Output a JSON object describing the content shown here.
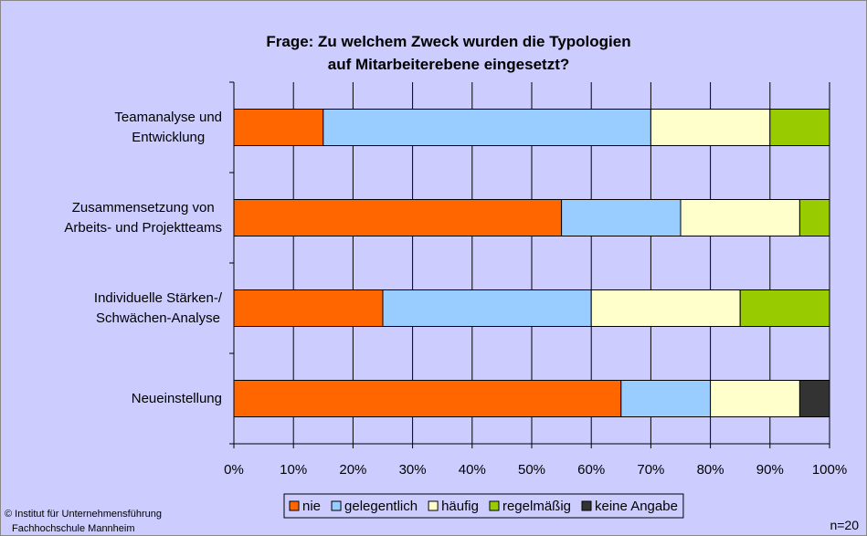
{
  "chart_data": {
    "type": "stacked_barh",
    "title": "Frage: Zu welchem Zweck wurden die Typologien\nauf Mitarbeiterebene eingesetzt?",
    "categories": [
      "Teamanalyse und\nEntwicklung",
      "Zusammensetzung von\nArbeits- und Projektteams",
      "Individuelle Stärken-/\nSchwächen-Analyse",
      "Neueinstellung"
    ],
    "series": [
      {
        "name": "nie",
        "color": "#ff6600",
        "values": [
          15,
          55,
          25,
          65
        ]
      },
      {
        "name": "gelegentlich",
        "color": "#99ccff",
        "values": [
          55,
          20,
          35,
          15
        ]
      },
      {
        "name": "häufig",
        "color": "#ffffcc",
        "values": [
          20,
          20,
          25,
          15
        ]
      },
      {
        "name": "regelmäßig",
        "color": "#99cc00",
        "values": [
          10,
          5,
          15,
          0
        ]
      },
      {
        "name": "keine Angabe",
        "color": "#333333",
        "values": [
          0,
          0,
          0,
          5
        ]
      }
    ],
    "xlim": [
      0,
      100
    ],
    "xticks": [
      {
        "value": 0,
        "label": "0%"
      },
      {
        "value": 10,
        "label": "10%"
      },
      {
        "value": 20,
        "label": "20%"
      },
      {
        "value": 30,
        "label": "30%"
      },
      {
        "value": 40,
        "label": "40%"
      },
      {
        "value": 50,
        "label": "50%"
      },
      {
        "value": 60,
        "label": "60%"
      },
      {
        "value": 70,
        "label": "70%"
      },
      {
        "value": 80,
        "label": "80%"
      },
      {
        "value": 90,
        "label": "90%"
      },
      {
        "value": 100,
        "label": "100%"
      }
    ],
    "grid": true,
    "legend": "bottom",
    "footer_left": [
      "© Institut für Unternehmensführung",
      "Fachhochschule Mannheim"
    ],
    "note": "n=20"
  }
}
